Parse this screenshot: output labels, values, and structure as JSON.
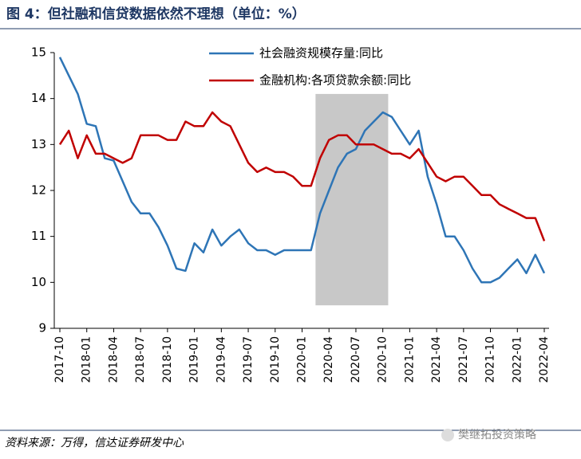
{
  "chart_data": {
    "type": "line",
    "title": "图 4：但社融和信贷数据依然不理想（单位：%）",
    "source": "资料来源：万得，信达证券研发中心",
    "watermark": "樊继拓投资策略",
    "categories": [
      "2017-10",
      null,
      null,
      "2018-01",
      null,
      null,
      "2018-04",
      null,
      null,
      "2018-07",
      null,
      null,
      "2018-10",
      null,
      null,
      "2019-01",
      null,
      null,
      "2019-04",
      null,
      null,
      "2019-07",
      null,
      null,
      "2019-10",
      null,
      null,
      "2020-01",
      null,
      null,
      "2020-04",
      null,
      null,
      "2020-07",
      null,
      null,
      "2020-10",
      null,
      null,
      "2021-01",
      null,
      null,
      "2021-04",
      null,
      null,
      "2021-07",
      null,
      null,
      "2021-10",
      null,
      null,
      "2022-01",
      null,
      null,
      "2022-04"
    ],
    "series": [
      {
        "name": "社会融资规模存量:同比",
        "color": "#2e75b6",
        "values": [
          14.9,
          14.5,
          14.1,
          13.45,
          13.4,
          12.7,
          12.65,
          12.2,
          11.75,
          11.5,
          11.5,
          11.2,
          10.8,
          10.3,
          10.25,
          10.85,
          10.65,
          11.15,
          10.8,
          11.0,
          11.15,
          10.85,
          10.7,
          10.7,
          10.6,
          10.7,
          10.7,
          10.7,
          10.7,
          11.5,
          12.0,
          12.5,
          12.8,
          12.9,
          13.3,
          13.5,
          13.7,
          13.6,
          13.3,
          13.0,
          13.3,
          12.3,
          11.7,
          11.0,
          11.0,
          10.7,
          10.3,
          10.0,
          10.0,
          10.1,
          10.3,
          10.5,
          10.2,
          10.6,
          10.2
        ]
      },
      {
        "name": "金融机构:各项贷款余额:同比",
        "color": "#c00000",
        "values": [
          13.0,
          13.3,
          12.7,
          13.2,
          12.8,
          12.8,
          12.7,
          12.6,
          12.7,
          13.2,
          13.2,
          13.2,
          13.1,
          13.1,
          13.5,
          13.4,
          13.4,
          13.7,
          13.5,
          13.4,
          13.0,
          12.6,
          12.4,
          12.5,
          12.4,
          12.4,
          12.3,
          12.1,
          12.1,
          12.7,
          13.1,
          13.2,
          13.2,
          13.0,
          13.0,
          13.0,
          12.9,
          12.8,
          12.8,
          12.7,
          12.9,
          12.6,
          12.3,
          12.2,
          12.3,
          12.3,
          12.1,
          11.9,
          11.9,
          11.7,
          11.6,
          11.5,
          11.4,
          11.4,
          10.9
        ]
      }
    ],
    "shaded_region": {
      "xlim": [
        28.5,
        36.6
      ],
      "ylim": [
        9.5,
        14.1
      ],
      "color": "#c8c8c8"
    },
    "ylim": [
      9,
      15
    ],
    "yticks": [
      9,
      10,
      11,
      12,
      13,
      14,
      15
    ],
    "grid": false,
    "legend": "top-right"
  }
}
